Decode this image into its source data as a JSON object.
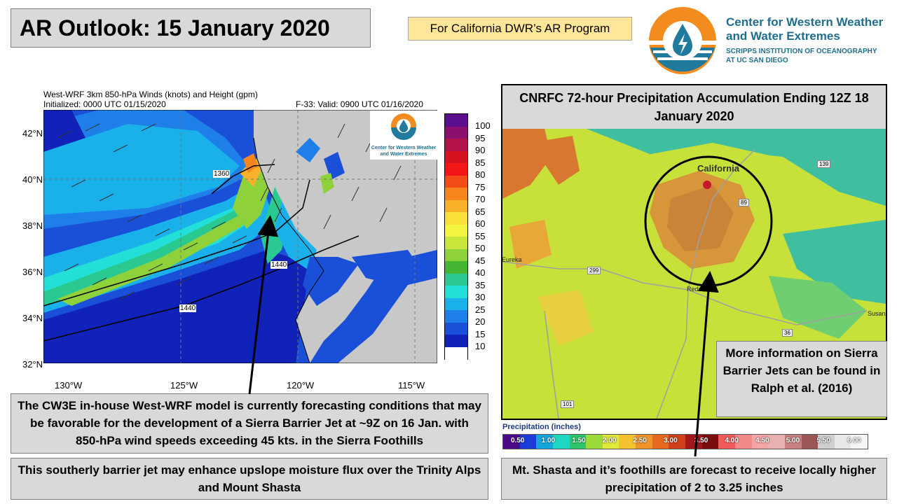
{
  "header": {
    "title": "AR Outlook: 15 January 2020",
    "program_tag": "For California DWR’s AR Program",
    "logo": {
      "name_line1": "Center for Western Weather",
      "name_line2": "and Water Extremes",
      "sub_line1": "SCRIPPS INSTITUTION OF OCEANOGRAPHY",
      "sub_line2": "AT UC SAN DIEGO"
    }
  },
  "wrf_map": {
    "title": "West-WRF 3km 850-hPa Winds (knots) and Height (gpm)",
    "initialized": "Initialized: 0000 UTC 01/15/2020",
    "valid": "F-33: Valid: 0900 UTC 01/16/2020",
    "lat_labels": [
      "42°N",
      "40°N",
      "38°N",
      "36°N",
      "34°N",
      "32°N"
    ],
    "lon_labels": [
      "130°W",
      "125°W",
      "120°W",
      "115°W"
    ],
    "contour_labels": [
      "1360",
      "1440",
      "1440"
    ],
    "inset_logo_line1": "Center for Western Weather",
    "inset_logo_line2": "and Water Extremes",
    "colorbar_labels": [
      "100",
      "95",
      "90",
      "85",
      "80",
      "75",
      "70",
      "65",
      "60",
      "55",
      "50",
      "45",
      "40",
      "35",
      "30",
      "25",
      "20",
      "15",
      "10"
    ],
    "colorbar_colors": [
      "#5b0f8f",
      "#8a0f6e",
      "#b3124a",
      "#d7121f",
      "#f21616",
      "#f24b16",
      "#f5851c",
      "#f9b12a",
      "#fce03a",
      "#f4f542",
      "#c8e63b",
      "#8fd13a",
      "#45b634",
      "#29c991",
      "#22e0d8",
      "#1ab0ea",
      "#1f7fe8",
      "#1a4fd8",
      "#1122b8",
      "#ffffff"
    ]
  },
  "cnrfc_map": {
    "title": "CNRFC 72-hour Precipitation Accumulation Ending 12Z 18 January 2020",
    "place_california": "California",
    "place_eureka": "Eureka",
    "place_redding": "Redding",
    "place_susanville": "Susan",
    "highways": [
      "139",
      "89",
      "299",
      "36",
      "101"
    ],
    "legend_title": "Precipitation (inches)",
    "legend_labels": [
      "0.50",
      "1.00",
      "1.50",
      "2.00",
      "2.50",
      "3.00",
      "3.50",
      "4.00",
      "4.50",
      "5.00",
      "5.50",
      "6.00"
    ],
    "legend_colors": [
      "#4b0a8a",
      "#1c3cd8",
      "#14a6d8",
      "#1fd6c0",
      "#2fc66a",
      "#9bdc3a",
      "#e0e838",
      "#f4c22e",
      "#f0932a",
      "#e56a20",
      "#d0401a",
      "#a3161a",
      "#7a0d0d",
      "#f05a5a",
      "#f28a8a",
      "#f4a6a6",
      "#e8b0b0",
      "#c88080",
      "#9a5555",
      "#cfcfcf",
      "#e8e8e8",
      "#f5f5f5"
    ]
  },
  "text_boxes": {
    "cw3e": "The CW3E in-house West-WRF model is currently forecasting conditions that may be favorable for the development of a Sierra Barrier Jet at ~9Z on 16 Jan. with 850-hPa wind speeds exceeding 45 kts. in the Sierra Foothills",
    "barrier": "This southerly barrier jet may enhance upslope moisture flux over the Trinity Alps and Mount Shasta",
    "shasta": "Mt. Shasta and it’s foothills are forecast to receive locally higher precipitation of 2 to 3.25 inches",
    "ralph": "More information on Sierra Barrier Jets can be found in Ralph et al. (2016)"
  }
}
